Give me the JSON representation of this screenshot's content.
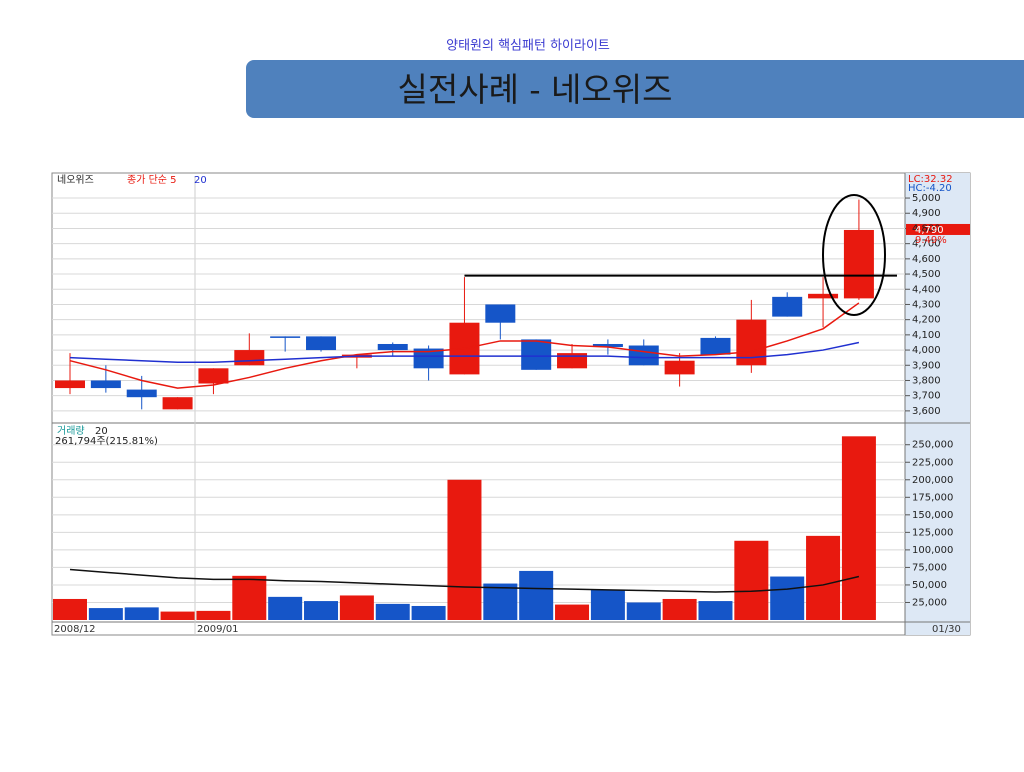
{
  "header": {
    "subtitle": "양태원의 핵심패턴 하이라이트",
    "title": "실전사례 - 네오위즈"
  },
  "chart_data": [
    {
      "type": "candlestick",
      "stock": "네오위즈",
      "ma_label": "종가 단순 5",
      "ma_label2": "20",
      "lc_label": "LC:32.32",
      "hc_label": "HC:-4.20",
      "last_label": "4,790",
      "change_label": "9.49%",
      "up_color": "#e8190f",
      "down_color": "#1555c8",
      "open": [
        3750,
        3800,
        3740,
        3610,
        3780,
        3900,
        4090,
        4090,
        3950,
        4040,
        4010,
        3840,
        4300,
        4070,
        3880,
        4040,
        4030,
        3840,
        4080,
        3900,
        4350,
        4340,
        4340
      ],
      "high": [
        3980,
        3900,
        3830,
        3690,
        3880,
        4110,
        4090,
        4090,
        3970,
        4050,
        4030,
        4480,
        4300,
        4070,
        4040,
        4070,
        4070,
        3980,
        4090,
        4330,
        4380,
        4480,
        4990
      ],
      "low": [
        3710,
        3720,
        3610,
        3610,
        3710,
        3900,
        3990,
        3990,
        3880,
        3960,
        3800,
        3840,
        4070,
        3870,
        3880,
        3970,
        3900,
        3760,
        3970,
        3850,
        4220,
        4150,
        4330
      ],
      "close": [
        3800,
        3750,
        3690,
        3690,
        3880,
        4000,
        4080,
        4000,
        3970,
        4000,
        3880,
        4180,
        4180,
        3870,
        3980,
        4020,
        3900,
        3930,
        3970,
        4200,
        4220,
        4370,
        4790
      ],
      "series": [
        {
          "color": "#e8190f",
          "values": [
            3930,
            3870,
            3800,
            3750,
            3770,
            3820,
            3880,
            3930,
            3970,
            3990,
            3990,
            4010,
            4060,
            4060,
            4030,
            4020,
            3990,
            3960,
            3970,
            3990,
            4060,
            4140,
            4310
          ]
        },
        {
          "color": "#2030d0",
          "values": [
            3950,
            3940,
            3930,
            3920,
            3920,
            3930,
            3940,
            3950,
            3960,
            3960,
            3960,
            3960,
            3960,
            3960,
            3960,
            3960,
            3950,
            3950,
            3950,
            3950,
            3970,
            4000,
            4050
          ]
        }
      ],
      "resistance": 4490,
      "ylim": [
        3540,
        5145
      ],
      "yticks": [
        {
          "value": 3600,
          "label": "3,600"
        },
        {
          "value": 3700,
          "label": "3,700"
        },
        {
          "value": 3800,
          "label": "3,800"
        },
        {
          "value": 3900,
          "label": "3,900"
        },
        {
          "value": 4000,
          "label": "4,000"
        },
        {
          "value": 4100,
          "label": "4,100"
        },
        {
          "value": 4200,
          "label": "4,200"
        },
        {
          "value": 4300,
          "label": "4,300"
        },
        {
          "value": 4400,
          "label": "4,400"
        },
        {
          "value": 4500,
          "label": "4,500"
        },
        {
          "value": 4600,
          "label": "4,600"
        },
        {
          "value": 4700,
          "label": "4,700"
        },
        {
          "value": 4800,
          "label": "4,800"
        },
        {
          "value": 4900,
          "label": "4,900"
        },
        {
          "value": 5000,
          "label": "5,000"
        }
      ]
    },
    {
      "type": "bar",
      "label": "거래량",
      "label2": "20",
      "info": "261,794주(215.81%)",
      "values": [
        30000,
        17000,
        18000,
        12000,
        13000,
        63000,
        33000,
        27000,
        35000,
        23000,
        20000,
        200000,
        52000,
        70000,
        22000,
        43000,
        25000,
        30000,
        27000,
        113000,
        62000,
        120000,
        262000
      ],
      "series": [
        {
          "color": "#111111",
          "values": [
            72000,
            68000,
            64000,
            60000,
            58000,
            58000,
            56000,
            55000,
            53000,
            51000,
            49000,
            47000,
            46000,
            45000,
            44000,
            43000,
            42000,
            41000,
            40000,
            41000,
            44000,
            50000,
            62000
          ]
        }
      ],
      "x_labels": [
        "2008/12",
        "2009/01",
        "01/30"
      ],
      "ylim": [
        0,
        271000
      ],
      "yticks": [
        {
          "value": 25000,
          "label": "25,000"
        },
        {
          "value": 50000,
          "label": "50,000"
        },
        {
          "value": 75000,
          "label": "75,000"
        },
        {
          "value": 100000,
          "label": "100,000"
        },
        {
          "value": 125000,
          "label": "125,000"
        },
        {
          "value": 150000,
          "label": "150,000"
        },
        {
          "value": 175000,
          "label": "175,000"
        },
        {
          "value": 200000,
          "label": "200,000"
        },
        {
          "value": 225000,
          "label": "225,000"
        },
        {
          "value": 250000,
          "label": "250,000"
        }
      ]
    }
  ]
}
